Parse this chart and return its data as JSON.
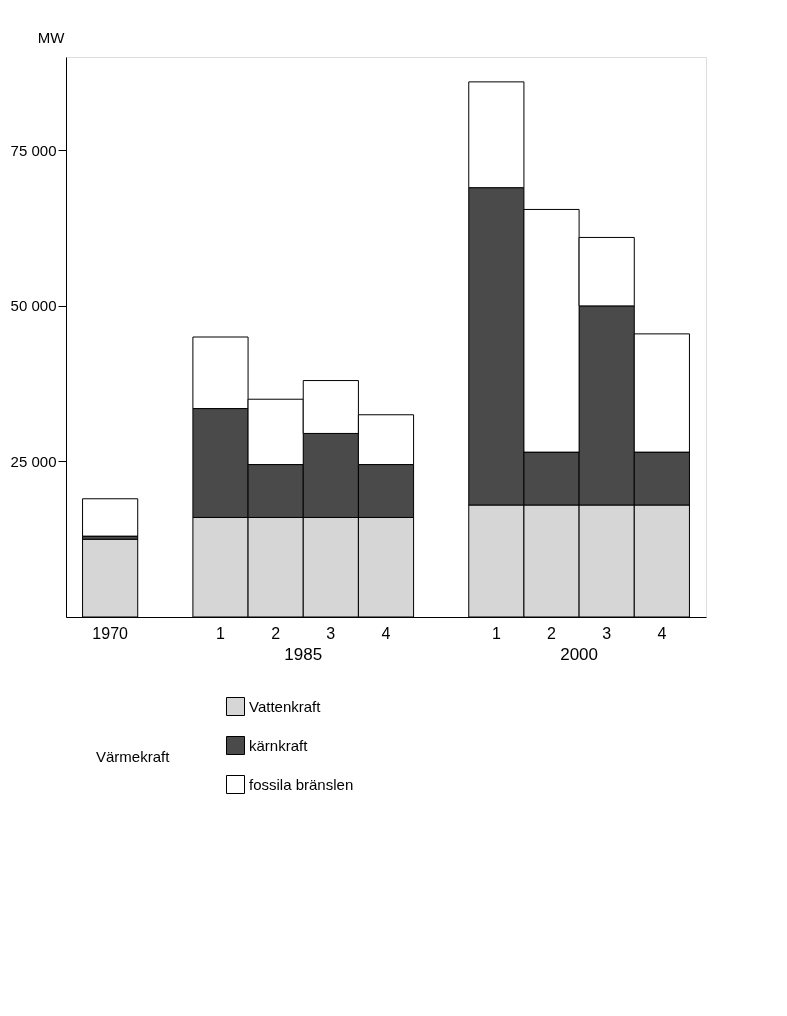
{
  "chart_data": {
    "type": "bar",
    "stacked": true,
    "ylabel": "MW",
    "categories": [
      "1970",
      null,
      "1",
      "2",
      "3",
      "4",
      null,
      "1",
      "2",
      "3",
      "4"
    ],
    "series": [
      {
        "name": "Vattenkraft",
        "color": "#d6d6d6",
        "values": [
          12500,
          null,
          16000,
          16000,
          16000,
          16000,
          null,
          18000,
          18000,
          18000,
          18000
        ]
      },
      {
        "name": "kärnkraft",
        "color": "#4a4a4a",
        "values": [
          500,
          null,
          17500,
          8500,
          13500,
          8500,
          null,
          51000,
          8500,
          32000,
          8500
        ]
      },
      {
        "name": "fossila bränslen",
        "color": "#ffffff",
        "values": [
          6000,
          null,
          11500,
          10500,
          8500,
          8000,
          null,
          17000,
          39000,
          11000,
          19000
        ]
      }
    ],
    "ylim": [
      0,
      90000
    ],
    "yticks": [
      {
        "value": 25000,
        "label": "25 000"
      },
      {
        "value": 50000,
        "label": "50 000"
      },
      {
        "value": 75000,
        "label": "75 000"
      }
    ],
    "annotations": [
      "1985",
      "2000",
      "Värmekraft"
    ],
    "grid": false,
    "legend": "bottom"
  }
}
